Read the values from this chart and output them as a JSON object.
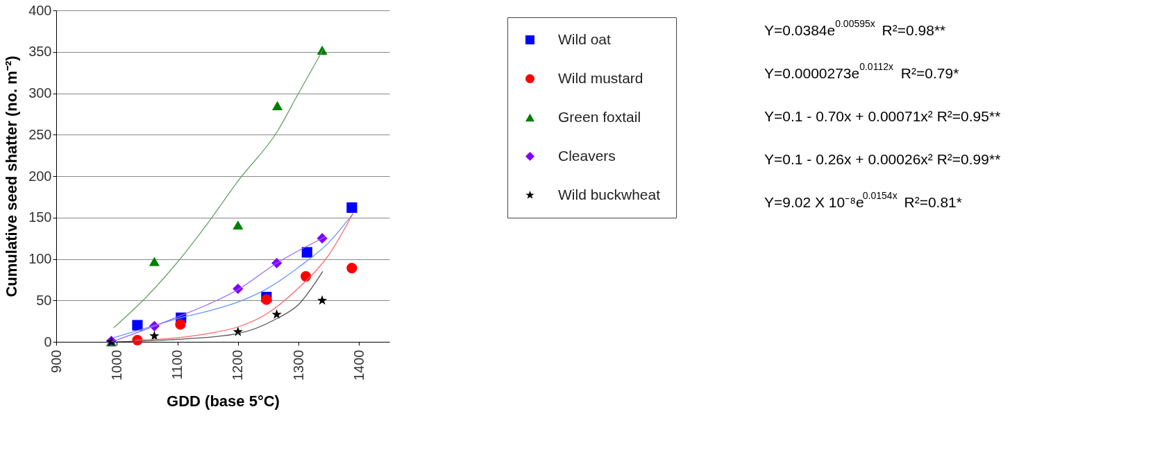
{
  "chart_data": {
    "type": "scatter",
    "xlabel": "GDD (base 5°C)",
    "ylabel": "Cumulative seed shatter (no. m⁻²)",
    "xlim": [
      900,
      1450
    ],
    "xticks": [
      900,
      {
        "value": 1000,
        "label": "1000"
      },
      {
        "value": 1100,
        "label": "1100"
      },
      {
        "value": 1200,
        "label": "1200"
      },
      {
        "value": 1300,
        "label": "1300"
      },
      {
        "value": 1400,
        "label": "1400"
      }
    ],
    "ylim": [
      0,
      400
    ],
    "yticks": [
      0,
      50,
      100,
      150,
      200,
      250,
      300,
      350,
      400
    ],
    "grid": "y",
    "legend": "right",
    "series": [
      {
        "name": "Wild oat",
        "marker": "square",
        "color": "#0000ff",
        "x": [
          1034,
          1106,
          1247,
          1314,
          1388
        ],
        "values": [
          20,
          29,
          54,
          108,
          162
        ]
      },
      {
        "name": "Wild mustard",
        "marker": "circle",
        "color": "#ff0000",
        "x": [
          1034,
          1105,
          1247,
          1312,
          1388
        ],
        "values": [
          2,
          21,
          51,
          79,
          89
        ]
      },
      {
        "name": "Green foxtail",
        "marker": "triangle",
        "color": "#008000",
        "x": [
          991,
          1062,
          1200,
          1265,
          1339
        ],
        "values": [
          0,
          97,
          141,
          285,
          352
        ]
      },
      {
        "name": "Cleavers",
        "marker": "diamond",
        "color": "#8000ff",
        "x": [
          991,
          1062,
          1200,
          1264,
          1339
        ],
        "values": [
          1,
          19,
          64,
          95,
          125
        ]
      },
      {
        "name": "Wild buckwheat",
        "marker": "star",
        "color": "#000000",
        "x": [
          991,
          1062,
          1200,
          1264,
          1339
        ],
        "values": [
          0,
          7,
          12,
          33,
          50
        ]
      },
      {
        "type": "line",
        "color": "#6699ff",
        "x": [
          995,
          1050,
          1100,
          1150,
          1200,
          1250,
          1300,
          1350,
          1390
        ],
        "values": [
          5,
          17,
          28,
          37,
          48,
          65,
          90,
          120,
          155
        ]
      },
      {
        "type": "line",
        "color": "#ff6666",
        "x": [
          1030,
          1100,
          1150,
          1200,
          1250,
          1300,
          1350,
          1390
        ],
        "values": [
          2,
          5,
          10,
          18,
          35,
          65,
          105,
          155
        ]
      },
      {
        "type": "line",
        "color": "#66a066",
        "x": [
          995,
          1050,
          1100,
          1150,
          1200,
          1265,
          1300,
          1340
        ],
        "values": [
          17,
          55,
          96,
          143,
          194,
          254,
          300,
          352
        ]
      },
      {
        "type": "line",
        "color": "#9966ff",
        "x": [
          991,
          1062,
          1100,
          1150,
          1200,
          1264,
          1300,
          1345
        ],
        "values": [
          0,
          19,
          30,
          45,
          63,
          95,
          110,
          127
        ]
      },
      {
        "type": "line",
        "color": "#555555",
        "x": [
          1000,
          1100,
          1200,
          1264,
          1300,
          1340
        ],
        "values": [
          0,
          3,
          10,
          28,
          45,
          85
        ]
      }
    ],
    "annotations": [
      "Y=0.0384e$^{0.00595x}$ R²=0.98**",
      "Y=0.0000273e$^{0.0112x}$ R²=0.79*",
      "Y=0.1 - 0.70x + 0.00071x² R²=0.95**",
      "Y=0.1 - 0.26x + 0.00026x² R²=0.99**",
      "Y=9.02 X 10⁻⁸e$^{0.0154x}$ R²=0.81*"
    ]
  }
}
